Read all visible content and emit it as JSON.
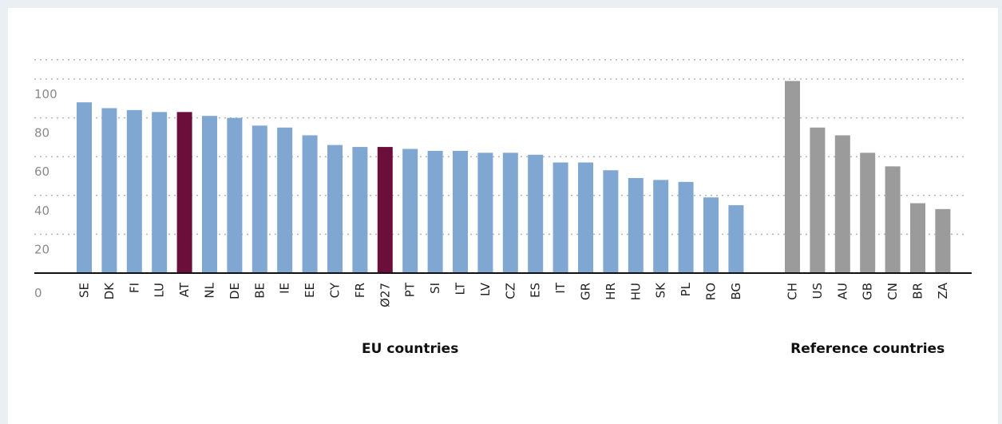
{
  "colors": {
    "eu_bar": "#7fa7d1",
    "highlight_bar": "#6b0f3a",
    "reference_bar": "#9b9b9b",
    "grid": "#b5b5b5",
    "axis": "#111111"
  },
  "chart_data": {
    "type": "bar",
    "title": "",
    "xlabel": "",
    "ylabel": "",
    "ylim": [
      0,
      100
    ],
    "y_ticks": [
      {
        "value": 20,
        "label": "20"
      },
      {
        "value": 40,
        "label": "40"
      },
      {
        "value": 60,
        "label": "60"
      },
      {
        "value": 80,
        "label": "80"
      },
      {
        "value": 100,
        "label": "100"
      }
    ],
    "zero_label": "0",
    "grid": true,
    "groups": [
      {
        "name": "EU countries",
        "categories": [
          "SE",
          "DK",
          "FI",
          "LU",
          "AT",
          "NL",
          "DE",
          "BE",
          "IE",
          "EE",
          "CY",
          "FR",
          "Ø27",
          "PT",
          "SI",
          "LT",
          "LV",
          "CZ",
          "ES",
          "IT",
          "GR",
          "HR",
          "HU",
          "SK",
          "PL",
          "RO",
          "BG"
        ],
        "values": [
          88,
          85,
          84,
          83,
          83,
          81,
          80,
          76,
          75,
          71,
          66,
          65,
          65,
          64,
          63,
          63,
          62,
          62,
          61,
          57,
          57,
          53,
          49,
          48,
          47,
          39,
          35
        ],
        "highlight": [
          "AT",
          "Ø27"
        ]
      },
      {
        "name": "Reference countries",
        "categories": [
          "CH",
          "US",
          "AU",
          "GB",
          "CN",
          "BR",
          "ZA"
        ],
        "values": [
          99,
          75,
          71,
          62,
          55,
          36,
          33
        ],
        "highlight": []
      }
    ]
  }
}
